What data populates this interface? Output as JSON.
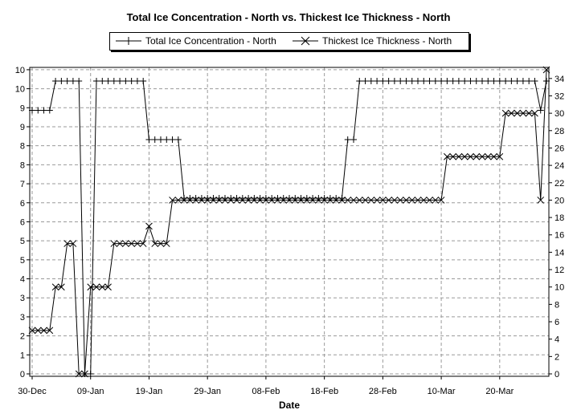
{
  "chart_data": {
    "type": "line",
    "title": "Total Ice Concentration - North vs. Thickest Ice Thickness - North",
    "xlabel": "Date",
    "x_tick_labels": [
      "30-Dec",
      "09-Jan",
      "19-Jan",
      "29-Jan",
      "08-Feb",
      "18-Feb",
      "28-Feb",
      "10-Mar",
      "20-Mar"
    ],
    "x_tick_days": [
      0,
      10,
      20,
      30,
      40,
      50,
      60,
      70,
      80
    ],
    "xlim_days": [
      0,
      88
    ],
    "left_axis": {
      "tick_labels": [
        "0",
        "1",
        "2",
        "3",
        "3",
        "4",
        "5",
        "5",
        "6",
        "6",
        "7",
        "8",
        "8",
        "9",
        "9",
        "10",
        "10"
      ],
      "ylim": [
        0,
        10
      ]
    },
    "right_axis": {
      "tick_labels": [
        "0",
        "2",
        "4",
        "6",
        "8",
        "10",
        "12",
        "14",
        "16",
        "18",
        "20",
        "22",
        "24",
        "26",
        "28",
        "30",
        "32",
        "34"
      ],
      "ylim": [
        0,
        35
      ]
    },
    "legend_position": "top-center",
    "grid": true,
    "series": [
      {
        "name": "Total Ice Concentration - North",
        "axis": "left",
        "marker": "plus",
        "points": [
          [
            0,
            9
          ],
          [
            1,
            9
          ],
          [
            2,
            9
          ],
          [
            3,
            9
          ],
          [
            4,
            10
          ],
          [
            5,
            10
          ],
          [
            6,
            10
          ],
          [
            7,
            10
          ],
          [
            8,
            10
          ],
          [
            9,
            0
          ],
          [
            10,
            0
          ],
          [
            11,
            10
          ],
          [
            12,
            10
          ],
          [
            13,
            10
          ],
          [
            14,
            10
          ],
          [
            15,
            10
          ],
          [
            16,
            10
          ],
          [
            17,
            10
          ],
          [
            18,
            10
          ],
          [
            19,
            10
          ],
          [
            20,
            8
          ],
          [
            21,
            8
          ],
          [
            22,
            8
          ],
          [
            23,
            8
          ],
          [
            24,
            8
          ],
          [
            25,
            8
          ],
          [
            26,
            6
          ],
          [
            27,
            6
          ],
          [
            28,
            6
          ],
          [
            29,
            6
          ],
          [
            30,
            6
          ],
          [
            31,
            6
          ],
          [
            32,
            6
          ],
          [
            33,
            6
          ],
          [
            34,
            6
          ],
          [
            35,
            6
          ],
          [
            36,
            6
          ],
          [
            37,
            6
          ],
          [
            38,
            6
          ],
          [
            39,
            6
          ],
          [
            40,
            6
          ],
          [
            41,
            6
          ],
          [
            42,
            6
          ],
          [
            43,
            6
          ],
          [
            44,
            6
          ],
          [
            45,
            6
          ],
          [
            46,
            6
          ],
          [
            47,
            6
          ],
          [
            48,
            6
          ],
          [
            49,
            6
          ],
          [
            50,
            6
          ],
          [
            51,
            6
          ],
          [
            52,
            6
          ],
          [
            53,
            6
          ],
          [
            54,
            8
          ],
          [
            55,
            8
          ],
          [
            56,
            10
          ],
          [
            57,
            10
          ],
          [
            58,
            10
          ],
          [
            59,
            10
          ],
          [
            60,
            10
          ],
          [
            61,
            10
          ],
          [
            62,
            10
          ],
          [
            63,
            10
          ],
          [
            64,
            10
          ],
          [
            65,
            10
          ],
          [
            66,
            10
          ],
          [
            67,
            10
          ],
          [
            68,
            10
          ],
          [
            69,
            10
          ],
          [
            70,
            10
          ],
          [
            71,
            10
          ],
          [
            72,
            10
          ],
          [
            73,
            10
          ],
          [
            74,
            10
          ],
          [
            75,
            10
          ],
          [
            76,
            10
          ],
          [
            77,
            10
          ],
          [
            78,
            10
          ],
          [
            79,
            10
          ],
          [
            80,
            10
          ],
          [
            81,
            10
          ],
          [
            82,
            10
          ],
          [
            83,
            10
          ],
          [
            84,
            10
          ],
          [
            85,
            10
          ],
          [
            86,
            10
          ],
          [
            87,
            9
          ],
          [
            88,
            10
          ]
        ]
      },
      {
        "name": "Thickest Ice Thickness - North",
        "axis": "right",
        "marker": "x",
        "points": [
          [
            0,
            5
          ],
          [
            1,
            5
          ],
          [
            2,
            5
          ],
          [
            3,
            5
          ],
          [
            4,
            10
          ],
          [
            5,
            10
          ],
          [
            6,
            15
          ],
          [
            7,
            15
          ],
          [
            8,
            0
          ],
          [
            9,
            0
          ],
          [
            10,
            10
          ],
          [
            11,
            10
          ],
          [
            12,
            10
          ],
          [
            13,
            10
          ],
          [
            14,
            15
          ],
          [
            15,
            15
          ],
          [
            16,
            15
          ],
          [
            17,
            15
          ],
          [
            18,
            15
          ],
          [
            19,
            15
          ],
          [
            20,
            17
          ],
          [
            21,
            15
          ],
          [
            22,
            15
          ],
          [
            23,
            15
          ],
          [
            24,
            20
          ],
          [
            25,
            20
          ],
          [
            26,
            20
          ],
          [
            27,
            20
          ],
          [
            28,
            20
          ],
          [
            29,
            20
          ],
          [
            30,
            20
          ],
          [
            31,
            20
          ],
          [
            32,
            20
          ],
          [
            33,
            20
          ],
          [
            34,
            20
          ],
          [
            35,
            20
          ],
          [
            36,
            20
          ],
          [
            37,
            20
          ],
          [
            38,
            20
          ],
          [
            39,
            20
          ],
          [
            40,
            20
          ],
          [
            41,
            20
          ],
          [
            42,
            20
          ],
          [
            43,
            20
          ],
          [
            44,
            20
          ],
          [
            45,
            20
          ],
          [
            46,
            20
          ],
          [
            47,
            20
          ],
          [
            48,
            20
          ],
          [
            49,
            20
          ],
          [
            50,
            20
          ],
          [
            51,
            20
          ],
          [
            52,
            20
          ],
          [
            53,
            20
          ],
          [
            54,
            20
          ],
          [
            55,
            20
          ],
          [
            56,
            20
          ],
          [
            57,
            20
          ],
          [
            58,
            20
          ],
          [
            59,
            20
          ],
          [
            60,
            20
          ],
          [
            61,
            20
          ],
          [
            62,
            20
          ],
          [
            63,
            20
          ],
          [
            64,
            20
          ],
          [
            65,
            20
          ],
          [
            66,
            20
          ],
          [
            67,
            20
          ],
          [
            68,
            20
          ],
          [
            69,
            20
          ],
          [
            70,
            20
          ],
          [
            71,
            25
          ],
          [
            72,
            25
          ],
          [
            73,
            25
          ],
          [
            74,
            25
          ],
          [
            75,
            25
          ],
          [
            76,
            25
          ],
          [
            77,
            25
          ],
          [
            78,
            25
          ],
          [
            79,
            25
          ],
          [
            80,
            25
          ],
          [
            81,
            30
          ],
          [
            82,
            30
          ],
          [
            83,
            30
          ],
          [
            84,
            30
          ],
          [
            85,
            30
          ],
          [
            86,
            30
          ],
          [
            87,
            20
          ],
          [
            88,
            35
          ]
        ]
      }
    ]
  }
}
